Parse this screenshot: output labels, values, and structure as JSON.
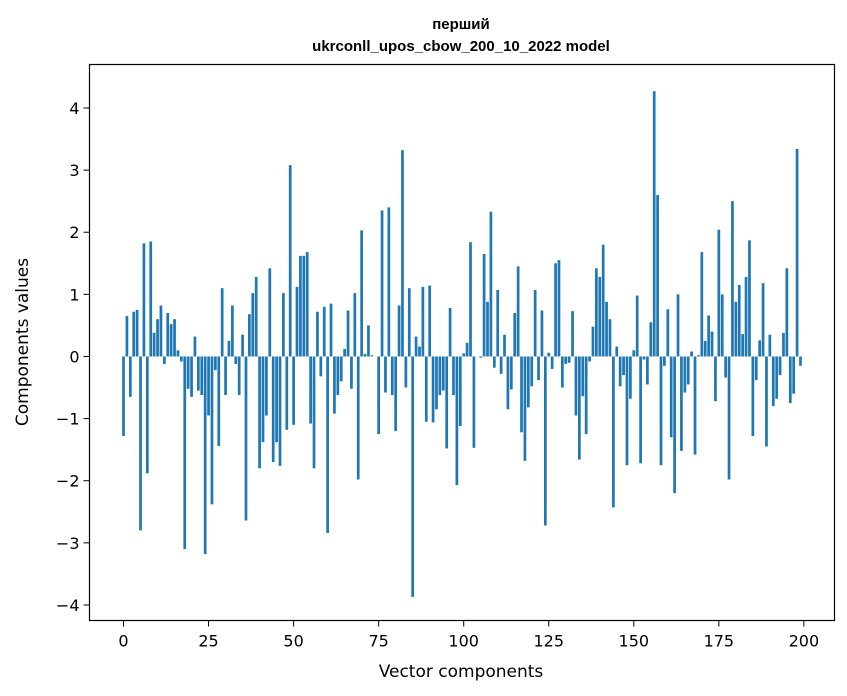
{
  "chart_data": {
    "type": "bar",
    "title": "перший",
    "subtitle": "ukrconll_upos_cbow_200_10_2022 model",
    "xlabel": "Vector components",
    "ylabel": "Components values",
    "xlim": [
      -10,
      209
    ],
    "ylim": [
      -4.25,
      4.7
    ],
    "xticks": [
      0,
      25,
      50,
      75,
      100,
      125,
      150,
      175,
      200
    ],
    "yticks": [
      -4,
      -3,
      -2,
      -1,
      0,
      1,
      2,
      3,
      4
    ],
    "bar_color": "#1f77b4",
    "grid": false,
    "legend": "none",
    "x": [
      0,
      1,
      2,
      3,
      4,
      5,
      6,
      7,
      8,
      9,
      10,
      11,
      12,
      13,
      14,
      15,
      16,
      17,
      18,
      19,
      20,
      21,
      22,
      23,
      24,
      25,
      26,
      27,
      28,
      29,
      30,
      31,
      32,
      33,
      34,
      35,
      36,
      37,
      38,
      39,
      40,
      41,
      42,
      43,
      44,
      45,
      46,
      47,
      48,
      49,
      50,
      51,
      52,
      53,
      54,
      55,
      56,
      57,
      58,
      59,
      60,
      61,
      62,
      63,
      64,
      65,
      66,
      67,
      68,
      69,
      70,
      71,
      72,
      73,
      74,
      75,
      76,
      77,
      78,
      79,
      80,
      81,
      82,
      83,
      84,
      85,
      86,
      87,
      88,
      89,
      90,
      91,
      92,
      93,
      94,
      95,
      96,
      97,
      98,
      99,
      100,
      101,
      102,
      103,
      104,
      105,
      106,
      107,
      108,
      109,
      110,
      111,
      112,
      113,
      114,
      115,
      116,
      117,
      118,
      119,
      120,
      121,
      122,
      123,
      124,
      125,
      126,
      127,
      128,
      129,
      130,
      131,
      132,
      133,
      134,
      135,
      136,
      137,
      138,
      139,
      140,
      141,
      142,
      143,
      144,
      145,
      146,
      147,
      148,
      149,
      150,
      151,
      152,
      153,
      154,
      155,
      156,
      157,
      158,
      159,
      160,
      161,
      162,
      163,
      164,
      165,
      166,
      167,
      168,
      169,
      170,
      171,
      172,
      173,
      174,
      175,
      176,
      177,
      178,
      179,
      180,
      181,
      182,
      183,
      184,
      185,
      186,
      187,
      188,
      189,
      190,
      191,
      192,
      193,
      194,
      195,
      196,
      197,
      198,
      199
    ],
    "values": [
      -1.28,
      0.65,
      -0.65,
      0.72,
      0.75,
      -2.8,
      1.82,
      -1.88,
      1.85,
      0.38,
      0.6,
      0.82,
      -0.12,
      0.7,
      0.52,
      0.6,
      0.1,
      -0.08,
      -3.1,
      -0.52,
      -0.65,
      0.32,
      -0.55,
      -0.62,
      -3.18,
      -0.95,
      -2.38,
      -0.22,
      -1.44,
      1.1,
      -0.62,
      0.25,
      0.82,
      -0.12,
      -0.62,
      0.35,
      -2.64,
      0.68,
      1.02,
      1.28,
      -1.8,
      -1.38,
      -0.95,
      1.42,
      -1.7,
      -1.38,
      -1.76,
      1.02,
      -1.18,
      3.08,
      -1.1,
      1.12,
      1.62,
      1.62,
      1.68,
      -1.08,
      -1.8,
      0.72,
      -0.32,
      0.8,
      -2.84,
      0.85,
      -0.92,
      -0.62,
      -0.4,
      0.12,
      0.74,
      -0.52,
      1.02,
      -1.98,
      2.03,
      0.04,
      0.5,
      0.02,
      0.0,
      -1.25,
      2.35,
      -0.58,
      2.4,
      -0.62,
      -1.2,
      0.82,
      3.32,
      -0.5,
      1.1,
      -3.87,
      0.32,
      0.16,
      1.12,
      -1.05,
      1.14,
      -1.06,
      -0.85,
      -0.62,
      -0.55,
      -1.48,
      0.78,
      -0.62,
      -2.07,
      -1.12,
      0.05,
      0.22,
      1.84,
      -1.47,
      0.0,
      -0.02,
      1.65,
      0.88,
      2.33,
      -0.18,
      1.07,
      -0.28,
      0.35,
      -0.85,
      -0.53,
      0.7,
      1.45,
      -1.22,
      -1.68,
      -0.82,
      -0.48,
      1.07,
      -0.38,
      0.74,
      -2.72,
      0.06,
      -0.2,
      1.5,
      1.55,
      -0.5,
      -0.12,
      -0.1,
      0.73,
      -0.95,
      -1.66,
      -0.64,
      -1.25,
      -0.08,
      0.48,
      1.42,
      1.28,
      1.8,
      0.88,
      0.6,
      -2.43,
      0.16,
      -0.48,
      -0.3,
      -1.75,
      -0.68,
      0.1,
      0.98,
      -1.72,
      -0.05,
      -0.45,
      0.55,
      4.27,
      2.6,
      -1.75,
      -0.15,
      0.76,
      -1.3,
      -2.2,
      1.0,
      -1.52,
      -0.58,
      -0.45,
      0.08,
      -1.58,
      0.02,
      1.68,
      0.25,
      0.66,
      0.4,
      -0.72,
      2.04,
      1.0,
      -0.34,
      -1.98,
      2.5,
      0.88,
      1.15,
      0.36,
      1.28,
      1.87,
      -1.28,
      -0.38,
      0.26,
      1.18,
      -1.45,
      0.35,
      -0.8,
      -0.68,
      -0.3,
      0.38,
      1.42,
      -0.75,
      -0.6,
      3.34,
      -0.15
    ]
  }
}
